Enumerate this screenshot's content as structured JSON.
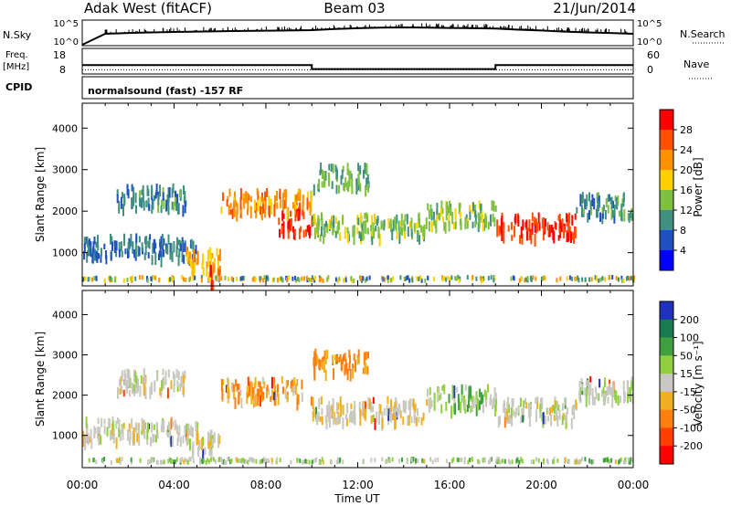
{
  "header": {
    "station": "Adak West (fitACF)",
    "beam": "Beam 03",
    "date": "21/Jun/2014"
  },
  "strip": {
    "nsky_label": "N.Sky",
    "nsky_ticks": [
      "10^5",
      "10^0"
    ],
    "nsearch_label": "N.Search",
    "freq_label": "Freq.",
    "freq_unit": "[MHz]",
    "freq_ticks": [
      "18",
      "8"
    ],
    "nave_label": "Nave",
    "nave_ticks": [
      "60",
      "0"
    ],
    "cpid_label": "CPID",
    "program": "normalsound (fast) -157 RF"
  },
  "power_colorbar": {
    "label": "Power [dB]",
    "ticks": [
      "28",
      "24",
      "20",
      "16",
      "12",
      "8",
      "4"
    ],
    "colors": [
      "#ff0000",
      "#ff5000",
      "#ff9000",
      "#ffd000",
      "#80c040",
      "#409080",
      "#2050c0",
      "#0000ff"
    ]
  },
  "velocity_colorbar": {
    "label": "Velocity [m s⁻¹]",
    "ticks": [
      "200",
      "100",
      "50",
      "15",
      "-15",
      "-50",
      "-100",
      "-200"
    ],
    "colors": [
      "#2030c0",
      "#1a7a50",
      "#40a040",
      "#90d040",
      "#c8c8c0",
      "#f0b020",
      "#ff8010",
      "#ff4000",
      "#ff0000"
    ]
  },
  "chart_data": [
    {
      "type": "line",
      "title": "Adak West (fitACF)",
      "series": [
        {
          "name": "N.Sky",
          "x": [
            "00:00",
            "01:00",
            "02:00",
            "03:00",
            "04:00",
            "05:00",
            "06:00",
            "07:00",
            "08:00",
            "09:00",
            "10:00",
            "11:00",
            "12:00",
            "13:00",
            "14:00",
            "15:00",
            "16:00",
            "17:00",
            "18:00",
            "19:00",
            "20:00",
            "21:00",
            "22:00",
            "23:00",
            "00:00"
          ],
          "values": [
            1,
            200,
            300,
            400,
            500,
            600,
            700,
            800,
            900,
            1000,
            1200,
            2000,
            3000,
            4000,
            4500,
            4000,
            3500,
            3000,
            2500,
            1500,
            1000,
            600,
            400,
            300,
            200
          ]
        }
      ],
      "ylim": [
        "10^0",
        "10^5"
      ]
    },
    {
      "type": "line",
      "series": [
        {
          "name": "Freq. [MHz]",
          "x": [
            "00:00",
            "10:00",
            "10:00",
            "18:00",
            "18:00",
            "24:00"
          ],
          "values": [
            12,
            12,
            10,
            10,
            12,
            12
          ]
        },
        {
          "name": "Nave",
          "x": [
            "00:00",
            "24:00"
          ],
          "values": [
            10,
            10
          ]
        }
      ],
      "ylim_freq": [
        8,
        18
      ],
      "ylim_nave": [
        0,
        60
      ]
    },
    {
      "type": "heatmap",
      "variable": "Power",
      "xlabel": "",
      "ylabel": "Slant Range [km]",
      "colorbar_label": "Power [dB]",
      "x_ticks": [
        "00:00",
        "04:00",
        "08:00",
        "12:00",
        "16:00",
        "20:00",
        "00:00"
      ],
      "y_ticks": [
        1000,
        2000,
        3000,
        4000
      ],
      "ylim": [
        200,
        4600
      ],
      "xlim_hours": [
        0,
        24
      ],
      "features": [
        {
          "start_hour": 0.0,
          "end_hour": 5.0,
          "range_km": 1200,
          "power_db": 6
        },
        {
          "start_hour": 1.5,
          "end_hour": 4.5,
          "range_km": 2400,
          "power_db": 7
        },
        {
          "start_hour": 4.5,
          "end_hour": 6.0,
          "range_km": 900,
          "power_db": 18
        },
        {
          "start_hour": 5.5,
          "end_hour": 6.0,
          "range_km": 500,
          "power_db": 24
        },
        {
          "start_hour": 6.0,
          "end_hour": 10.0,
          "range_km": 2300,
          "power_db": 20
        },
        {
          "start_hour": 8.5,
          "end_hour": 10.0,
          "range_km": 1800,
          "power_db": 26
        },
        {
          "start_hour": 10.0,
          "end_hour": 15.0,
          "range_km": 1700,
          "power_db": 12
        },
        {
          "start_hour": 10.0,
          "end_hour": 12.5,
          "range_km": 2900,
          "power_db": 10
        },
        {
          "start_hour": 15.0,
          "end_hour": 18.0,
          "range_km": 2000,
          "power_db": 12
        },
        {
          "start_hour": 18.0,
          "end_hour": 21.5,
          "range_km": 1700,
          "power_db": 26
        },
        {
          "start_hour": 21.5,
          "end_hour": 24.0,
          "range_km": 2200,
          "power_db": 8
        }
      ]
    },
    {
      "type": "heatmap",
      "variable": "Velocity",
      "xlabel": "Time UT",
      "ylabel": "Slant Range [km]",
      "colorbar_label": "Velocity [m s⁻¹]",
      "x_ticks": [
        "00:00",
        "04:00",
        "08:00",
        "12:00",
        "16:00",
        "20:00",
        "00:00"
      ],
      "y_ticks": [
        1000,
        2000,
        3000,
        4000
      ],
      "ylim": [
        200,
        4600
      ],
      "xlim_hours": [
        0,
        24
      ],
      "features": [
        {
          "start_hour": 0.0,
          "end_hour": 5.0,
          "range_km": 1200,
          "velocity": 0
        },
        {
          "start_hour": 1.5,
          "end_hour": 4.5,
          "range_km": 2400,
          "velocity": 0
        },
        {
          "start_hour": 4.5,
          "end_hour": 6.0,
          "range_km": 900,
          "velocity": 0
        },
        {
          "start_hour": 6.0,
          "end_hour": 10.0,
          "range_km": 2200,
          "velocity": -30
        },
        {
          "start_hour": 10.0,
          "end_hour": 15.0,
          "range_km": 1700,
          "velocity": -10
        },
        {
          "start_hour": 10.0,
          "end_hour": 12.5,
          "range_km": 2900,
          "velocity": -40
        },
        {
          "start_hour": 15.0,
          "end_hour": 18.0,
          "range_km": 2000,
          "velocity": 20
        },
        {
          "start_hour": 18.0,
          "end_hour": 21.5,
          "range_km": 1700,
          "velocity": 0
        },
        {
          "start_hour": 21.5,
          "end_hour": 24.0,
          "range_km": 2200,
          "velocity": 10
        }
      ]
    }
  ]
}
